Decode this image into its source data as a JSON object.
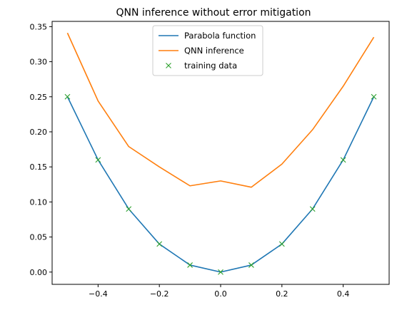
{
  "chart_data": {
    "type": "line",
    "title": "QNN inference without error mitigation",
    "xlabel": "",
    "ylabel": "",
    "xlim": [
      -0.55,
      0.55
    ],
    "ylim": [
      -0.0175,
      0.3575
    ],
    "xticks": [
      -0.4,
      -0.2,
      0.0,
      0.2,
      0.4
    ],
    "xtick_labels": [
      "−0.4",
      "−0.2",
      "0.0",
      "0.2",
      "0.4"
    ],
    "yticks": [
      0.0,
      0.05,
      0.1,
      0.15,
      0.2,
      0.25,
      0.3,
      0.35
    ],
    "ytick_labels": [
      "0.00",
      "0.05",
      "0.10",
      "0.15",
      "0.20",
      "0.25",
      "0.30",
      "0.35"
    ],
    "grid": false,
    "legend": {
      "position": "top-center"
    },
    "x": [
      -0.5,
      -0.4,
      -0.3,
      -0.2,
      -0.1,
      0.0,
      0.1,
      0.2,
      0.3,
      0.4,
      0.5
    ],
    "series": [
      {
        "name": "Parabola function",
        "style": "line",
        "color": "#1f77b4",
        "values": [
          0.25,
          0.16,
          0.09,
          0.04,
          0.01,
          0.0,
          0.01,
          0.04,
          0.09,
          0.16,
          0.25
        ]
      },
      {
        "name": "QNN inference",
        "style": "line",
        "color": "#ff7f0e",
        "values": [
          0.341,
          0.244,
          0.179,
          0.15,
          0.123,
          0.13,
          0.121,
          0.154,
          0.203,
          0.265,
          0.335
        ]
      },
      {
        "name": "training data",
        "style": "marker-x",
        "color": "#2ca02c",
        "values": [
          0.25,
          0.16,
          0.09,
          0.04,
          0.01,
          0.0,
          0.01,
          0.04,
          0.09,
          0.16,
          0.25
        ]
      }
    ]
  }
}
